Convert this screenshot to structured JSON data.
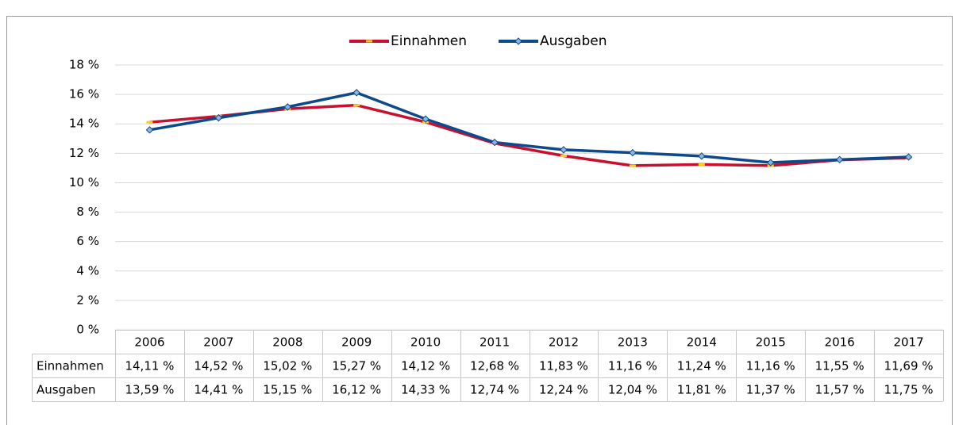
{
  "chart_data": {
    "type": "line",
    "categories": [
      "2006",
      "2007",
      "2008",
      "2009",
      "2010",
      "2011",
      "2012",
      "2013",
      "2014",
      "2015",
      "2016",
      "2017"
    ],
    "series": [
      {
        "name": "Einnahmen",
        "color": "#c8102e",
        "values": [
          14.11,
          14.52,
          15.02,
          15.27,
          14.12,
          12.68,
          11.83,
          11.16,
          11.24,
          11.16,
          11.55,
          11.69
        ],
        "value_labels": [
          "14,11 %",
          "14,52 %",
          "15,02 %",
          "15,27 %",
          "14,12 %",
          "12,68 %",
          "11,83 %",
          "11,16 %",
          "11,24 %",
          "11,16 %",
          "11,55 %",
          "11,69 %"
        ]
      },
      {
        "name": "Ausgaben",
        "color": "#0d4a8c",
        "values": [
          13.59,
          14.41,
          15.15,
          16.12,
          14.33,
          12.74,
          12.24,
          12.04,
          11.81,
          11.37,
          11.57,
          11.75
        ],
        "value_labels": [
          "13,59 %",
          "14,41 %",
          "15,15 %",
          "16,12 %",
          "14,33 %",
          "12,74 %",
          "12,24 %",
          "12,04 %",
          "11,81 %",
          "11,37 %",
          "11,57 %",
          "11,75 %"
        ]
      }
    ],
    "ylim": [
      0,
      18
    ],
    "yticks": [
      {
        "value": 0,
        "label": "0 %"
      },
      {
        "value": 2,
        "label": "2 %"
      },
      {
        "value": 4,
        "label": "4 %"
      },
      {
        "value": 6,
        "label": "6 %"
      },
      {
        "value": 8,
        "label": "8 %"
      },
      {
        "value": 10,
        "label": "10 %"
      },
      {
        "value": 12,
        "label": "12 %"
      },
      {
        "value": 14,
        "label": "14 %"
      },
      {
        "value": 16,
        "label": "16 %"
      },
      {
        "value": 18,
        "label": "18 %"
      }
    ],
    "grid": true,
    "legend": "top"
  }
}
